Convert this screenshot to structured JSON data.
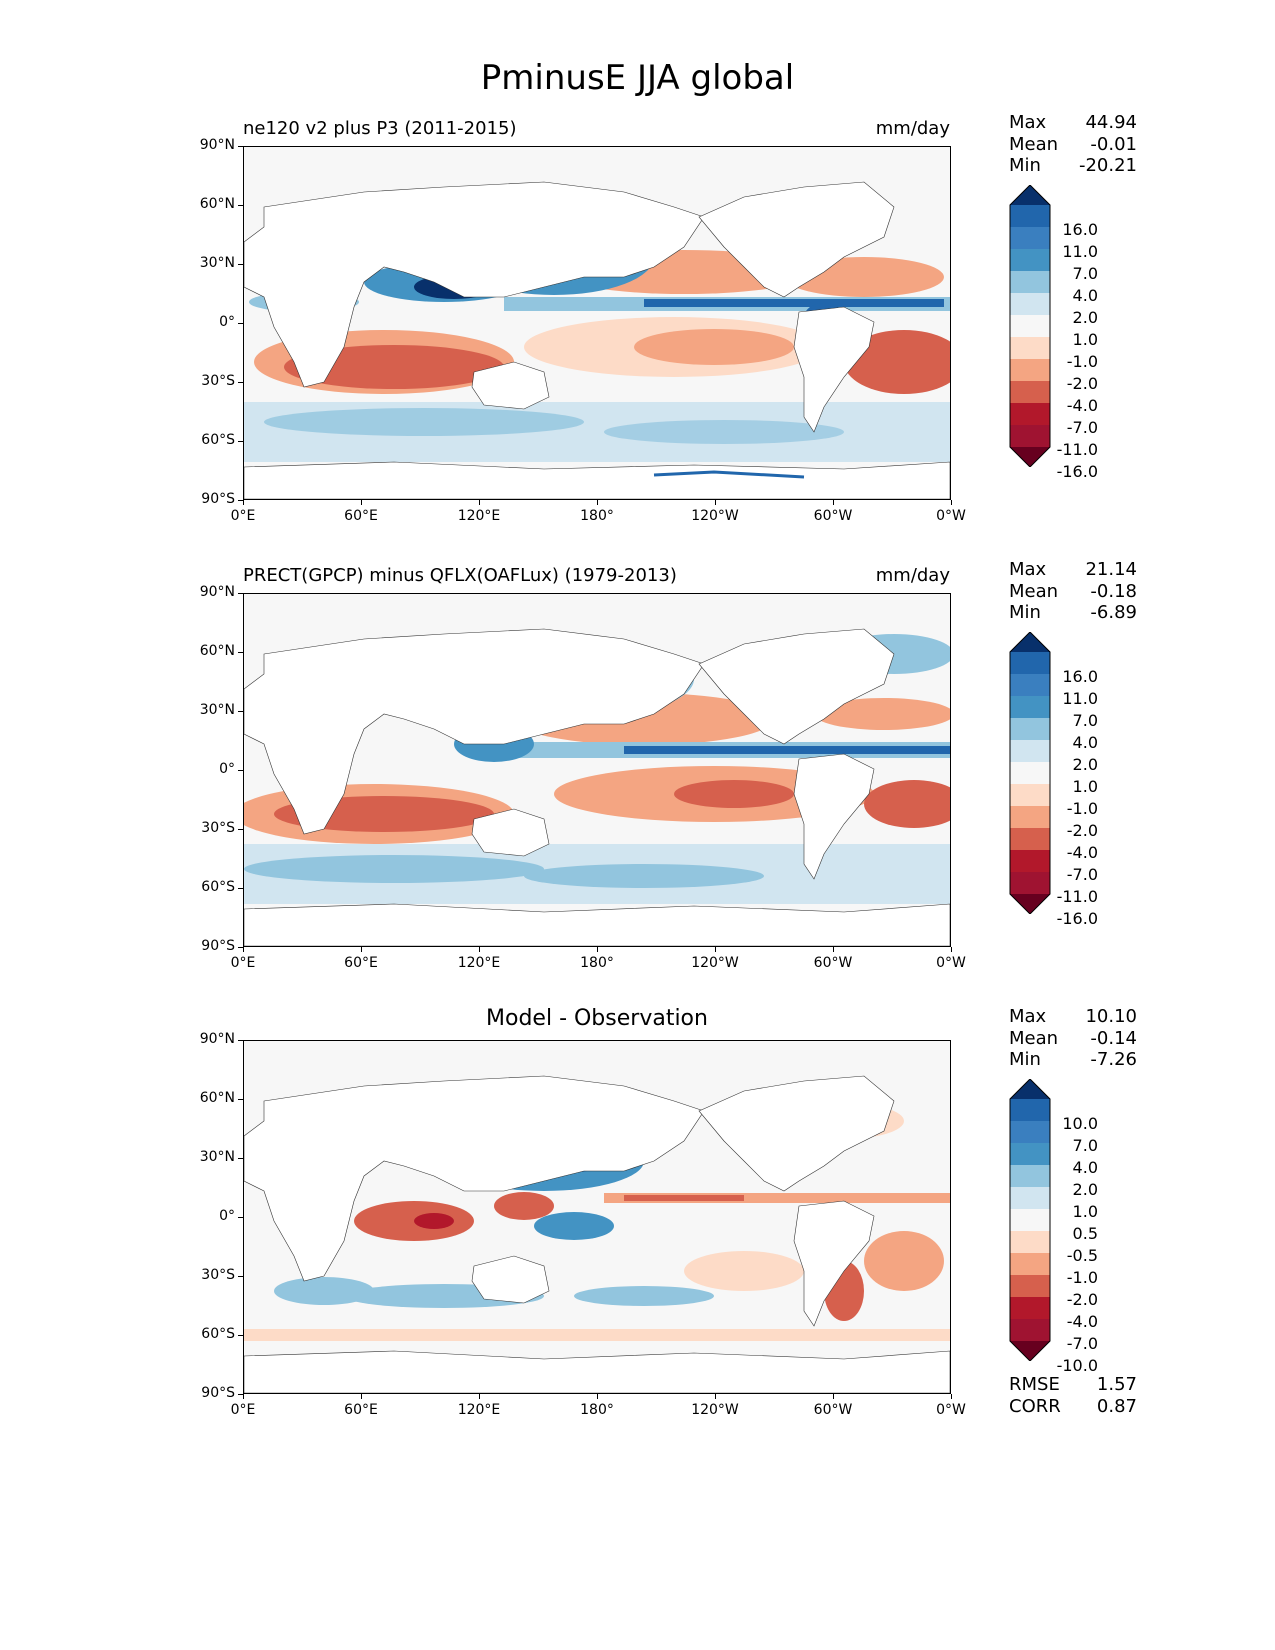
{
  "title": "PminusE JJA global",
  "x_ticks": [
    "0°E",
    "60°E",
    "120°E",
    "180°",
    "120°W",
    "60°W",
    "0°W"
  ],
  "y_ticks": [
    "90°N",
    "60°N",
    "30°N",
    "0°",
    "30°S",
    "60°S",
    "90°S"
  ],
  "colors": {
    "dark_blue": "#08306b",
    "blue1": "#2166ac",
    "blue2": "#4393c3",
    "blue3": "#92c5de",
    "blue4": "#d1e5f0",
    "white": "#f7f7f7",
    "red4": "#fddbc7",
    "red3": "#f4a582",
    "red2": "#d6604d",
    "red1": "#b2182b",
    "dark_red": "#67001f"
  },
  "panels": [
    {
      "left_title": "ne120 v2 plus P3 (2011-2015)",
      "center_title": "",
      "unit": "mm/day",
      "stats": {
        "max_label": "Max",
        "max": "44.94",
        "mean_label": "Mean",
        "mean": "-0.01",
        "min_label": "Min",
        "min": "-20.21"
      },
      "colorbar_levels": [
        "16.0",
        "11.0",
        "7.0",
        "4.0",
        "2.0",
        "1.0",
        "-1.0",
        "-2.0",
        "-4.0",
        "-7.0",
        "-11.0",
        "-16.0"
      ]
    },
    {
      "left_title": "PRECT(GPCP) minus QFLX(OAFLux) (1979-2013)",
      "center_title": "",
      "unit": "mm/day",
      "stats": {
        "max_label": "Max",
        "max": "21.14",
        "mean_label": "Mean",
        "mean": "-0.18",
        "min_label": "Min",
        "min": "-6.89"
      },
      "colorbar_levels": [
        "16.0",
        "11.0",
        "7.0",
        "4.0",
        "2.0",
        "1.0",
        "-1.0",
        "-2.0",
        "-4.0",
        "-7.0",
        "-11.0",
        "-16.0"
      ]
    },
    {
      "left_title": "",
      "center_title": "Model - Observation",
      "unit": "",
      "stats": {
        "max_label": "Max",
        "max": "10.10",
        "mean_label": "Mean",
        "mean": "-0.14",
        "min_label": "Min",
        "min": "-7.26"
      },
      "colorbar_levels": [
        "10.0",
        "7.0",
        "4.0",
        "2.0",
        "1.0",
        "0.5",
        "-0.5",
        "-1.0",
        "-2.0",
        "-4.0",
        "-7.0",
        "-10.0"
      ],
      "metrics": {
        "rmse_label": "RMSE",
        "rmse": "1.57",
        "corr_label": "CORR",
        "corr": "0.87"
      }
    }
  ]
}
